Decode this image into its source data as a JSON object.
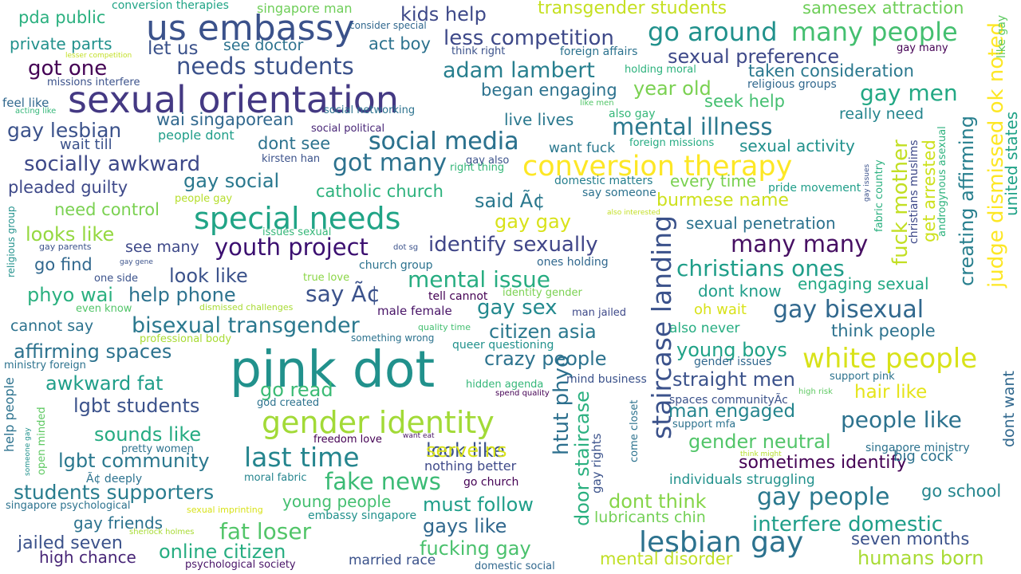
{
  "words": [
    {
      "text": "sexual orientation",
      "color": "#443983"
    },
    {
      "text": "pink dot",
      "color": "#21918c"
    },
    {
      "text": "us embassy",
      "color": "#3b528b"
    },
    {
      "text": "conversion therapy",
      "color": "#fde725"
    },
    {
      "text": "special needs",
      "color": "#20a486"
    },
    {
      "text": "gender identity",
      "color": "#a2da37"
    },
    {
      "text": "staircase landing",
      "color": "#3b528b"
    },
    {
      "text": "white people",
      "color": "#d8e219"
    },
    {
      "text": "lesbian gay",
      "color": "#2c728e"
    },
    {
      "text": "many people",
      "color": "#44bf70"
    },
    {
      "text": "go around",
      "color": "#21918c"
    },
    {
      "text": "social media",
      "color": "#2c728e"
    },
    {
      "text": "mental illness",
      "color": "#2a788e"
    },
    {
      "text": "last time",
      "color": "#25858e"
    },
    {
      "text": "fake news",
      "color": "#3bbb75"
    },
    {
      "text": "youth project",
      "color": "#3b0f70"
    },
    {
      "text": "many many",
      "color": "#471063"
    },
    {
      "text": "gay bisexual",
      "color": "#31688e"
    },
    {
      "text": "gay people",
      "color": "#2a788e"
    },
    {
      "text": "socially awkward",
      "color": "#3e4989"
    },
    {
      "text": "got many",
      "color": "#2c728e"
    },
    {
      "text": "needs students",
      "color": "#3b528b"
    },
    {
      "text": "mental issue",
      "color": "#27ad81"
    },
    {
      "text": "christians ones",
      "color": "#1f9e89"
    },
    {
      "text": "bisexual transgender",
      "color": "#2a788e"
    },
    {
      "text": "got one",
      "color": "#440154"
    },
    {
      "text": "gay men",
      "color": "#22a884"
    },
    {
      "text": "fat loser",
      "color": "#52c569"
    },
    {
      "text": "adam lambert",
      "color": "#277f8e"
    },
    {
      "text": "judge dismissed ok noted",
      "color": "#fde725"
    },
    {
      "text": "fuck mother",
      "color": "#c2df23"
    },
    {
      "text": "htut phyo",
      "color": "#2d708e"
    },
    {
      "text": "say Ã¢",
      "color": "#3b528b"
    },
    {
      "text": "identify sexually",
      "color": "#404688"
    },
    {
      "text": "less competition",
      "color": "#3e4989"
    },
    {
      "text": "students supporters",
      "color": "#287c8e"
    },
    {
      "text": "awkward fat",
      "color": "#1f9e89"
    },
    {
      "text": "people like",
      "color": "#2c728e"
    },
    {
      "text": "interfere domestic",
      "color": "#1f9e89"
    },
    {
      "text": "creating affirming",
      "color": "#277f8e"
    },
    {
      "text": "straight men",
      "color": "#3b528b"
    },
    {
      "text": "gay lesbian",
      "color": "#3b528b"
    },
    {
      "text": "crazy people",
      "color": "#2c728e"
    },
    {
      "text": "online citizen",
      "color": "#26ad81"
    },
    {
      "text": "gay sex",
      "color": "#23898e"
    },
    {
      "text": "affirming spaces",
      "color": "#2c728e"
    },
    {
      "text": "sexual preference",
      "color": "#3e4989"
    },
    {
      "text": "gay social",
      "color": "#2a788e"
    },
    {
      "text": "lgbt community",
      "color": "#2a788e"
    },
    {
      "text": "must follow",
      "color": "#1f9e89"
    },
    {
      "text": "sometimes identify",
      "color": "#440154"
    },
    {
      "text": "kids help",
      "color": "#3e4989"
    },
    {
      "text": "fucking gay",
      "color": "#4ac16d"
    },
    {
      "text": "dont think",
      "color": "#86d549"
    },
    {
      "text": "citizen asia",
      "color": "#2a788e"
    },
    {
      "text": "transgender students",
      "color": "#c5e021"
    },
    {
      "text": "gays like",
      "color": "#31688e"
    },
    {
      "text": "lgbt students",
      "color": "#3b528b"
    },
    {
      "text": "look like",
      "color": "#3b528b"
    },
    {
      "text": "sounds like",
      "color": "#25ab82"
    },
    {
      "text": "serve ns",
      "color": "#d8e219"
    },
    {
      "text": "go read",
      "color": "#3bbb75"
    },
    {
      "text": "hair like",
      "color": "#e5e419"
    },
    {
      "text": "young boys",
      "color": "#1fa287"
    },
    {
      "text": "look like",
      "color": "#3b528b"
    },
    {
      "text": "phyo wai",
      "color": "#2ab07f"
    },
    {
      "text": "help phone",
      "color": "#2c728e"
    },
    {
      "text": "humans born",
      "color": "#a8db34"
    },
    {
      "text": "looks like",
      "color": "#95d840"
    },
    {
      "text": "gender neutral",
      "color": "#52c569"
    },
    {
      "text": "man engaged",
      "color": "#25858e"
    },
    {
      "text": "door staircase",
      "color": "#2ab07f"
    },
    {
      "text": "get arrested",
      "color": "#cde11d"
    },
    {
      "text": "jailed seven",
      "color": "#3b528b"
    },
    {
      "text": "year old",
      "color": "#7ad151"
    },
    {
      "text": "social media",
      "color": "#2c728e"
    },
    {
      "text": "wai singaporean",
      "color": "#31688e"
    },
    {
      "text": "go school",
      "color": "#24868e"
    },
    {
      "text": "seven months",
      "color": "#3b528b"
    },
    {
      "text": "mental disorder",
      "color": "#c0df25"
    },
    {
      "text": "catholic church",
      "color": "#2db27d"
    },
    {
      "text": "taken consideration",
      "color": "#2a788e"
    },
    {
      "text": "began engaging",
      "color": "#2c728e"
    },
    {
      "text": "dont see",
      "color": "#2c728e"
    },
    {
      "text": "burmese name",
      "color": "#cde11d"
    },
    {
      "text": "gay gay",
      "color": "#d8e219"
    },
    {
      "text": "said Ã¢",
      "color": "#2a788e"
    },
    {
      "text": "pleaded guilty",
      "color": "#3e4989"
    },
    {
      "text": "think people",
      "color": "#2c728e"
    },
    {
      "text": "sexual activity",
      "color": "#21918c"
    },
    {
      "text": "engaging sexual",
      "color": "#22a884"
    },
    {
      "text": "dont know",
      "color": "#1f9e89"
    },
    {
      "text": "seek help",
      "color": "#44bf70"
    },
    {
      "text": "every time",
      "color": "#7ad151"
    },
    {
      "text": "pda public",
      "color": "#2ab07f"
    },
    {
      "text": "let us",
      "color": "#3b528b"
    },
    {
      "text": "see doctor",
      "color": "#2c728e"
    },
    {
      "text": "act boy",
      "color": "#2c728e"
    },
    {
      "text": "need control",
      "color": "#7ad151"
    },
    {
      "text": "see many",
      "color": "#3e4989"
    },
    {
      "text": "go find",
      "color": "#31688e"
    },
    {
      "text": "cannot say",
      "color": "#2c728e"
    },
    {
      "text": "live lives",
      "color": "#2a788e"
    },
    {
      "text": "wait till",
      "color": "#3b528b"
    },
    {
      "text": "dont want",
      "color": "#31688e"
    },
    {
      "text": "united states",
      "color": "#1fa287"
    },
    {
      "text": "high chance",
      "color": "#482677"
    },
    {
      "text": "married race",
      "color": "#3b528b"
    },
    {
      "text": "young people",
      "color": "#44bf70"
    },
    {
      "text": "lubricants chin",
      "color": "#73d056"
    },
    {
      "text": "gay friends",
      "color": "#2c728e"
    },
    {
      "text": "sexual penetration",
      "color": "#2c728e"
    },
    {
      "text": "really need",
      "color": "#25858e"
    },
    {
      "text": "oh wait",
      "color": "#d8e219"
    },
    {
      "text": "also never",
      "color": "#26ad81"
    },
    {
      "text": "want fuck",
      "color": "#2a788e"
    },
    {
      "text": "private parts",
      "color": "#21918c"
    },
    {
      "text": "samesex attraction",
      "color": "#6ece58"
    },
    {
      "text": "big cock",
      "color": "#2c728e"
    },
    {
      "text": "feel like",
      "color": "#31688e"
    },
    {
      "text": "one side",
      "color": "#3b528b"
    },
    {
      "text": "true love",
      "color": "#8bd646"
    },
    {
      "text": "even know",
      "color": "#52c569"
    },
    {
      "text": "singapore man",
      "color": "#6ece58"
    },
    {
      "text": "conversion therapies",
      "color": "#20a486"
    },
    {
      "text": "consider special",
      "color": "#31688e"
    },
    {
      "text": "lesser competition",
      "color": "#c2df23"
    },
    {
      "text": "missions interfere",
      "color": "#3b528b"
    },
    {
      "text": "acting like",
      "color": "#35b779"
    },
    {
      "text": "think right",
      "color": "#3b528b"
    },
    {
      "text": "foreign affairs",
      "color": "#2c728e"
    },
    {
      "text": "holding moral",
      "color": "#2db27d"
    },
    {
      "text": "religious groups",
      "color": "#31688e"
    },
    {
      "text": "gay many",
      "color": "#440154"
    },
    {
      "text": "like gay",
      "color": "#5ec962"
    },
    {
      "text": "like men",
      "color": "#52c569"
    },
    {
      "text": "also gay",
      "color": "#35b779"
    },
    {
      "text": "social networking",
      "color": "#2c728e"
    },
    {
      "text": "social political",
      "color": "#482677"
    },
    {
      "text": "people dont",
      "color": "#1f9e89"
    },
    {
      "text": "foreign missions",
      "color": "#25ab82"
    },
    {
      "text": "kirsten han",
      "color": "#3b528b"
    },
    {
      "text": "gay also",
      "color": "#3b528b"
    },
    {
      "text": "right thing",
      "color": "#35b779"
    },
    {
      "text": "domestic matters",
      "color": "#277f8e"
    },
    {
      "text": "say someone",
      "color": "#2c728e"
    },
    {
      "text": "pride movement",
      "color": "#1f9e89"
    },
    {
      "text": "people gay",
      "color": "#b5de2b"
    },
    {
      "text": "also interested",
      "color": "#c2df23"
    },
    {
      "text": "gay issues",
      "color": "#3b528b"
    },
    {
      "text": "fabric country",
      "color": "#2ab07f"
    },
    {
      "text": "christians muslims",
      "color": "#3e4989"
    },
    {
      "text": "androgynous asexual",
      "color": "#2db27d"
    },
    {
      "text": "issues sexual",
      "color": "#35b779"
    },
    {
      "text": "dot sg",
      "color": "#3b528b"
    },
    {
      "text": "church group",
      "color": "#2c728e"
    },
    {
      "text": "gay parents",
      "color": "#3b528b"
    },
    {
      "text": "gay gene",
      "color": "#3b528b"
    },
    {
      "text": "religious group",
      "color": "#21918c"
    },
    {
      "text": "ones holding",
      "color": "#31688e"
    },
    {
      "text": "identity gender",
      "color": "#7ad151"
    },
    {
      "text": "tell cannot",
      "color": "#440154"
    },
    {
      "text": "male female",
      "color": "#481467"
    },
    {
      "text": "man jailed",
      "color": "#3e4989"
    },
    {
      "text": "dismissed challenges",
      "color": "#a8db34"
    },
    {
      "text": "quality time",
      "color": "#44bf70"
    },
    {
      "text": "something wrong",
      "color": "#2c728e"
    },
    {
      "text": "professional body",
      "color": "#a8db34"
    },
    {
      "text": "queer questioning",
      "color": "#21918c"
    },
    {
      "text": "ministry foreign",
      "color": "#2c728e"
    },
    {
      "text": "gender issues",
      "color": "#31688e"
    },
    {
      "text": "support pink",
      "color": "#2c728e"
    },
    {
      "text": "mind business",
      "color": "#3b528b"
    },
    {
      "text": "hidden agenda",
      "color": "#35b779"
    },
    {
      "text": "spend quality",
      "color": "#440154"
    },
    {
      "text": "high risk",
      "color": "#5ec962"
    },
    {
      "text": "spaces communityÃc",
      "color": "#3b528b"
    },
    {
      "text": "support mfa",
      "color": "#2c728e"
    },
    {
      "text": "god created",
      "color": "#2c728e"
    },
    {
      "text": "help people",
      "color": "#2c728e"
    },
    {
      "text": "someone gay",
      "color": "#21918c"
    },
    {
      "text": "open minded",
      "color": "#5ec962"
    },
    {
      "text": "freedom love",
      "color": "#440154"
    },
    {
      "text": "want eat",
      "color": "#481467"
    },
    {
      "text": "come closet",
      "color": "#2c728e"
    },
    {
      "text": "gay rights",
      "color": "#3b528b"
    },
    {
      "text": "singapore ministry",
      "color": "#2c728e"
    },
    {
      "text": "think might",
      "color": "#b5de2b"
    },
    {
      "text": "pretty women",
      "color": "#2c728e"
    },
    {
      "text": "Ã¢ deeply",
      "color": "#2c728e"
    },
    {
      "text": "moral fabric",
      "color": "#25858e"
    },
    {
      "text": "nothing better",
      "color": "#3e4989"
    },
    {
      "text": "go church",
      "color": "#440154"
    },
    {
      "text": "individuals struggling",
      "color": "#21918c"
    },
    {
      "text": "singapore psychological",
      "color": "#2c728e"
    },
    {
      "text": "sexual imprinting",
      "color": "#d8e219"
    },
    {
      "text": "embassy singapore",
      "color": "#21918c"
    },
    {
      "text": "sherlock holmes",
      "color": "#a8db34"
    },
    {
      "text": "psychological society",
      "color": "#481467"
    },
    {
      "text": "domestic social",
      "color": "#31688e"
    }
  ]
}
